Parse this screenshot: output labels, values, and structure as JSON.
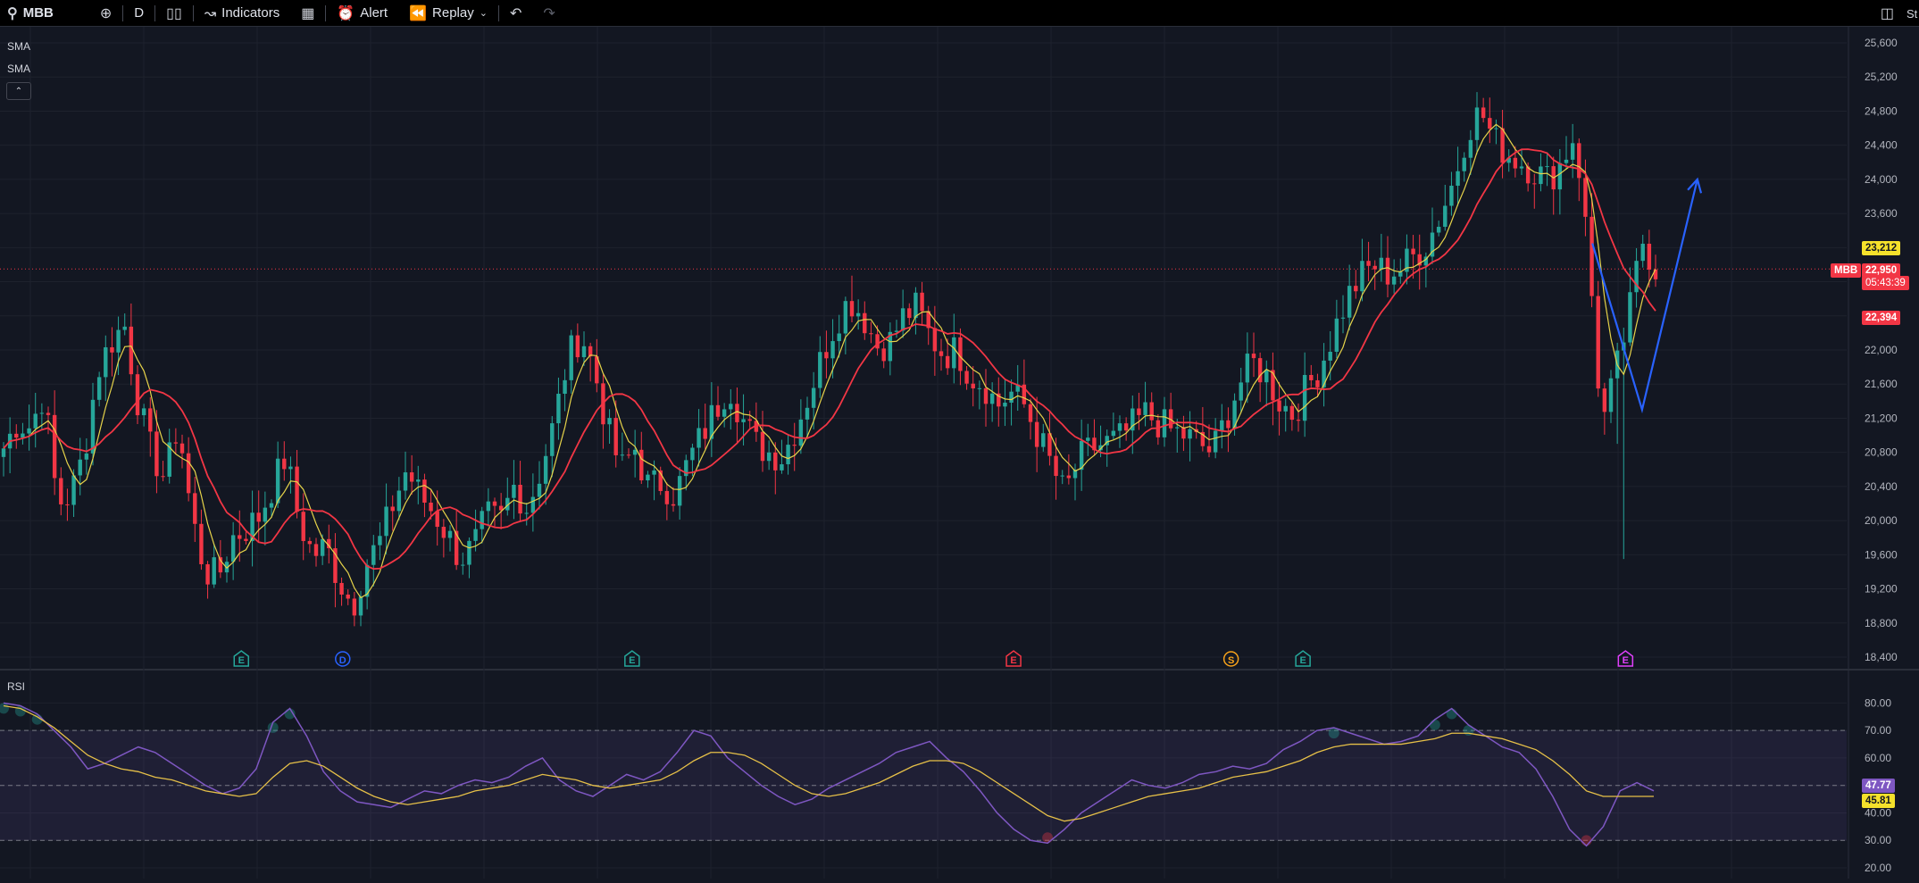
{
  "toolbar": {
    "symbol": "MBB",
    "interval": "D",
    "indicators_label": "Indicators",
    "alert_label": "Alert",
    "replay_label": "Replay",
    "cut_label": "St"
  },
  "legend": {
    "ma_fast": "SMA",
    "ma_slow": "SMA",
    "rsi": "RSI"
  },
  "colors": {
    "up": "#26a69a",
    "down": "#f23645",
    "ma_fast": "#e6d34a",
    "ma_slow": "#f23645",
    "rsi_line": "#7e57c2",
    "rsi_ma": "#e6c048",
    "projection": "#2962ff"
  },
  "badges": {
    "ma_fast_value": "23,212",
    "symbol_tag": "MBB",
    "last_price": "22,950",
    "countdown": "05:43:39",
    "ma_slow_value": "22,394",
    "rsi_value": "47.77",
    "rsi_ma_value": "45.81"
  },
  "chart_data": [
    {
      "type": "candlestick",
      "symbol": "MBB",
      "interval": "D",
      "ylim": [
        18400,
        25600
      ],
      "y_ticks": [
        "25,600",
        "25,200",
        "24,800",
        "24,400",
        "24,000",
        "23,600",
        "23,200",
        "22,800",
        "22,400",
        "22,000",
        "21,600",
        "21,200",
        "20,800",
        "20,400",
        "20,000",
        "19,600",
        "19,200",
        "18,800",
        "18,400"
      ],
      "last_price": 22950,
      "overlays": [
        {
          "label": "SMA",
          "color": "#e6d34a",
          "last_value": 23212
        },
        {
          "label": "SMA",
          "color": "#f23645",
          "last_value": 22394
        }
      ],
      "close_path": [
        20850,
        21150,
        21100,
        21500,
        20200,
        20300,
        20800,
        21750,
        22100,
        22300,
        21400,
        20800,
        20500,
        21150,
        20050,
        19400,
        19350,
        19800,
        19900,
        20050,
        20400,
        20750,
        20000,
        19600,
        19700,
        19300,
        19000,
        19500,
        19750,
        20200,
        20600,
        20300,
        20100,
        19850,
        19550,
        19700,
        20050,
        20000,
        20400,
        20150,
        20600,
        21150,
        21900,
        22200,
        21750,
        21050,
        20600,
        20850,
        20400,
        20450,
        20300,
        20700,
        21000,
        21300,
        21600,
        21200,
        20900,
        20800,
        20750,
        21100,
        21500,
        21950,
        22350,
        22600,
        22400,
        22050,
        22100,
        22400,
        22500,
        22150,
        21950,
        22000,
        21700,
        21600,
        21350,
        21500,
        21350,
        21000,
        20650,
        20300,
        20700,
        20850,
        20900,
        20950,
        21100,
        21250,
        21150,
        21050,
        21000,
        20900,
        20800,
        21200,
        21600,
        21850,
        21700,
        21400,
        21250,
        21550,
        21800,
        22200,
        22600,
        22850,
        23000,
        22900,
        22950,
        23100,
        23250,
        23600,
        24000,
        24600,
        24800,
        24450,
        24300,
        24200,
        24100,
        24000,
        24200,
        24550,
        23150,
        21100,
        21700,
        22400,
        23300,
        22950
      ],
      "events": [
        {
          "label": "E",
          "x_frac": 0.129,
          "color": "#26a69a"
        },
        {
          "label": "D",
          "x_frac": 0.184,
          "color": "#2962ff"
        },
        {
          "label": "E",
          "x_frac": 0.341,
          "color": "#26a69a"
        },
        {
          "label": "E",
          "x_frac": 0.548,
          "color": "#f23645"
        },
        {
          "label": "S",
          "x_frac": 0.666,
          "color": "#f7a21b"
        },
        {
          "label": "E",
          "x_frac": 0.705,
          "color": "#26a69a"
        },
        {
          "label": "E",
          "x_frac": 0.88,
          "color": "#e040fb"
        }
      ],
      "projection_path": [
        [
          0.862,
          23250
        ],
        [
          0.889,
          21300
        ],
        [
          0.919,
          24000
        ]
      ]
    },
    {
      "type": "line",
      "label": "RSI",
      "ylim": [
        20,
        85
      ],
      "y_ticks": [
        "80.00",
        "70.00",
        "60.00",
        "50.00",
        "40.00",
        "30.00",
        "20.00"
      ],
      "bands": [
        30,
        50,
        70
      ],
      "series": [
        {
          "name": "RSI",
          "color": "#7e57c2",
          "last_value": 47.77,
          "values": [
            80,
            79,
            76,
            70,
            64,
            56,
            58,
            61,
            64,
            62,
            58,
            54,
            50,
            47,
            49,
            56,
            73,
            78,
            68,
            55,
            48,
            44,
            43,
            42,
            45,
            48,
            47,
            50,
            52,
            51,
            53,
            57,
            60,
            52,
            48,
            46,
            50,
            54,
            52,
            55,
            62,
            70,
            68,
            60,
            55,
            50,
            46,
            43,
            45,
            49,
            52,
            55,
            58,
            62,
            64,
            66,
            60,
            55,
            48,
            40,
            34,
            30,
            29,
            34,
            40,
            44,
            48,
            52,
            50,
            49,
            51,
            54,
            55,
            57,
            56,
            58,
            63,
            66,
            70,
            71,
            69,
            67,
            65,
            66,
            68,
            74,
            78,
            72,
            68,
            64,
            62,
            56,
            46,
            34,
            28,
            35,
            48,
            51,
            48
          ]
        },
        {
          "name": "RSI MA",
          "color": "#e6c048",
          "last_value": 45.81,
          "values": [
            79,
            78,
            75,
            71,
            66,
            61,
            58,
            56,
            55,
            53,
            52,
            50,
            48,
            47,
            46,
            47,
            53,
            58,
            59,
            57,
            53,
            49,
            46,
            44,
            43,
            44,
            45,
            46,
            48,
            49,
            50,
            52,
            54,
            53,
            52,
            50,
            49,
            50,
            51,
            52,
            55,
            59,
            62,
            62,
            61,
            58,
            54,
            50,
            47,
            46,
            47,
            49,
            51,
            54,
            57,
            59,
            59,
            58,
            55,
            51,
            47,
            43,
            39,
            37,
            38,
            40,
            42,
            44,
            46,
            47,
            48,
            49,
            51,
            53,
            54,
            55,
            57,
            59,
            62,
            64,
            65,
            65,
            65,
            65,
            66,
            67,
            69,
            69,
            68,
            67,
            65,
            63,
            59,
            54,
            48,
            46,
            46,
            46,
            46
          ]
        }
      ]
    }
  ]
}
